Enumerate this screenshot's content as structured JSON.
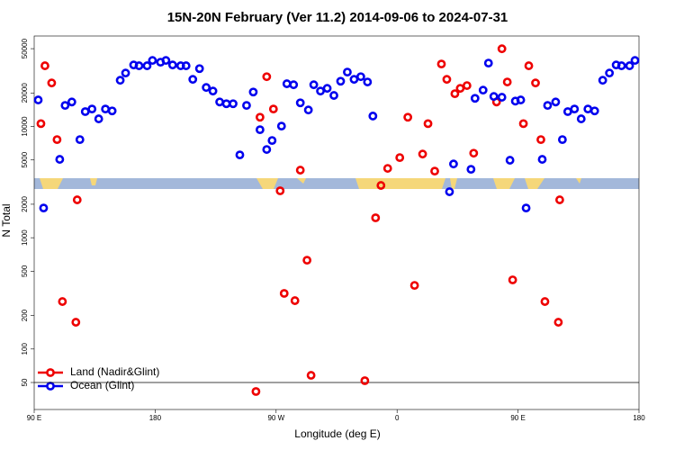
{
  "chart_data": {
    "type": "scatter",
    "title": "15N-20N February (Ver 11.2)   2014-09-06 to 2024-07-31",
    "x_label": "Longitude (deg E)",
    "y_label": "N Total",
    "log_y": true,
    "legend": "bottom left",
    "hline": 50,
    "xlim": [
      90,
      540
    ],
    "ylim": [
      28.6,
      65000
    ],
    "xticks": [
      {
        "value": 90,
        "label": "90 E"
      },
      180,
      {
        "value": 270,
        "label": "90 W"
      },
      {
        "value": 360,
        "label": "0"
      },
      {
        "value": 450,
        "label": "90 E"
      },
      {
        "value": 540,
        "label": "180"
      }
    ],
    "yticks": [
      50,
      100,
      200,
      500,
      1000,
      2000,
      5000,
      10000,
      20000,
      50000
    ],
    "series": [
      {
        "name": "Land (Nadir&Glint)",
        "color": "#ee0000",
        "x": [
          95,
          98,
          103,
          107,
          111,
          121,
          122,
          255,
          258,
          263,
          268,
          273,
          276,
          284,
          288,
          293,
          296,
          336,
          344,
          348,
          353,
          362,
          368,
          373,
          379,
          383,
          388,
          393,
          397,
          403,
          407,
          412,
          417,
          434,
          438,
          442,
          446,
          454,
          458,
          463,
          467,
          470,
          480,
          481
        ],
        "values": [
          10600,
          35100,
          24600,
          7620,
          267,
          174,
          2190,
          41.5,
          12100,
          28000,
          14350,
          2640,
          316,
          272,
          4050,
          628,
          58,
          51.9,
          1510,
          2950,
          4200,
          5250,
          12100,
          373,
          5650,
          10600,
          3970,
          36400,
          26500,
          19700,
          22000,
          23300,
          5750,
          16600,
          49900,
          25100,
          418,
          10600,
          35100,
          24600,
          7620,
          267,
          174,
          2190
        ]
      },
      {
        "name": "Ocean (Glint)",
        "color": "#0000ee",
        "x": [
          93,
          97,
          109,
          113,
          118,
          124,
          128,
          133,
          138,
          143,
          148,
          154,
          158,
          164,
          168,
          174,
          178,
          184,
          188,
          193,
          199,
          203,
          208,
          213,
          218,
          223,
          228,
          233,
          238,
          243,
          248,
          253,
          258,
          263,
          267,
          274,
          278,
          283,
          288,
          294,
          298,
          303,
          308,
          313,
          318,
          323,
          328,
          333,
          338,
          342,
          399,
          402,
          415,
          418,
          424,
          428,
          432,
          438,
          444,
          448,
          452,
          456,
          468,
          472,
          478,
          483,
          487,
          492,
          497,
          502,
          507,
          513,
          518,
          523,
          527,
          533,
          537
        ],
        "values": [
          17300,
          1850,
          5060,
          15450,
          16600,
          7620,
          13600,
          14350,
          11700,
          14350,
          13800,
          26000,
          30200,
          35700,
          35100,
          35100,
          39200,
          37800,
          39200,
          35700,
          35100,
          35100,
          26500,
          33100,
          22400,
          20800,
          16600,
          16000,
          16000,
          5550,
          15450,
          20400,
          9350,
          6210,
          7480,
          10070,
          24200,
          23700,
          16300,
          14060,
          23700,
          20800,
          22000,
          19000,
          25500,
          30800,
          26500,
          28000,
          25100,
          12400,
          2590,
          4600,
          4120,
          17900,
          21200,
          37100,
          18600,
          18300,
          4970,
          16900,
          17300,
          1850,
          5060,
          15450,
          16600,
          7620,
          13600,
          14350,
          11700,
          14350,
          13800,
          26000,
          30200,
          35700,
          35100,
          35100,
          39200
        ]
      }
    ]
  }
}
